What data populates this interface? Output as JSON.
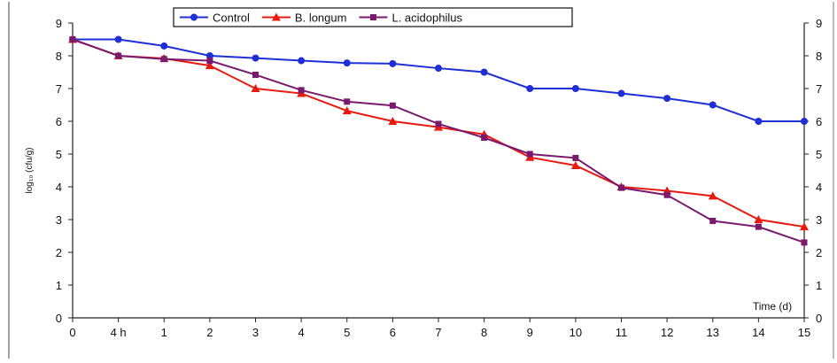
{
  "chart_data": {
    "type": "line",
    "title": "",
    "xlabel": "Time (d)",
    "ylabel": "log₁₀ (cfu/g)",
    "categories": [
      "0",
      "4 h",
      "1",
      "2",
      "3",
      "4",
      "5",
      "6",
      "7",
      "8",
      "9",
      "10",
      "11",
      "12",
      "13",
      "14",
      "15"
    ],
    "ylim": [
      0,
      9
    ],
    "yticks": [
      0,
      1,
      2,
      3,
      4,
      5,
      6,
      7,
      8,
      9
    ],
    "secondary_y_axis": true,
    "grid": false,
    "legend": "top",
    "series": [
      {
        "name": "Control",
        "color": "#1f2fd6",
        "marker": "circle",
        "values": [
          8.5,
          8.5,
          8.3,
          8.0,
          7.93,
          7.85,
          7.78,
          7.76,
          7.62,
          7.5,
          7.0,
          7.0,
          6.85,
          6.7,
          6.5,
          6.0,
          6.0
        ]
      },
      {
        "name": "B. longum",
        "color": "#e8190f",
        "marker": "triangle",
        "values": [
          8.5,
          8.0,
          7.92,
          7.7,
          7.0,
          6.85,
          6.32,
          6.0,
          5.82,
          5.6,
          4.9,
          4.65,
          4.0,
          3.88,
          3.72,
          3.0,
          2.78
        ]
      },
      {
        "name": "L. acidophilus",
        "color": "#7a1a6e",
        "marker": "square",
        "values": [
          8.5,
          8.0,
          7.9,
          7.85,
          7.42,
          6.95,
          6.6,
          6.48,
          5.92,
          5.5,
          5.0,
          4.88,
          3.97,
          3.75,
          2.96,
          2.78,
          2.3
        ]
      }
    ]
  }
}
